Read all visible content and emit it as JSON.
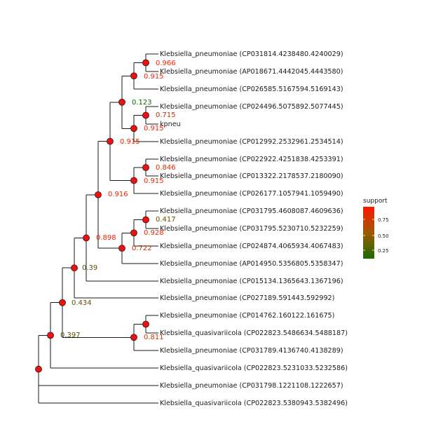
{
  "tree": {
    "tips": [
      "Klebsiella_pneumoniae (CP031814.4238480.4240029)",
      "Klebsiella_pneumoniae (AP018671.4442045.4443580)",
      "Klebsiella_pneumoniae (CP026585.5167594.5169143)",
      "Klebsiella_pneumoniae (CP024496.5075892.5077445)",
      "kpneu",
      "Klebsiella_pneumoniae (CP012992.2532961.2534514)",
      "Klebsiella_pneumoniae (CP022922.4251838.4253391)",
      "Klebsiella_pneumoniae (CP013322.2178537.2180090)",
      "Klebsiella_pneumoniae (CP026177.1057941.1059490)",
      "Klebsiella_pneumoniae (CP031795.4608087.4609636)",
      "Klebsiella_pneumoniae (CP031795.5230710.5232259)",
      "Klebsiella_pneumoniae (CP024874.4065934.4067483)",
      "Klebsiella_pneumoniae (AP014950.5356805.5358347)",
      "Klebsiella_pneumoniae (CP015134.1365643.1367196)",
      "Klebsiella_pneumoniae (CP027189.591443.592992)",
      "Klebsiella_pneumoniae (CP014762.160122.161675)",
      "Klebsiella_quasivariicola (CP022823.5486634.5488187)",
      "Klebsiella_pneumoniae (CP031789.4136740.4138289)",
      "Klebsiella_quasivariicola (CP022823.5231033.5232586)",
      "Klebsiella_pneumoniae (CP031798.1221108.1222657)",
      "Klebsiella_quasivariicola (CP022823.5380943.5382496)"
    ],
    "support_labels": [
      {
        "text": "0.966",
        "support": 0.966
      },
      {
        "text": "0.915",
        "support": 0.915
      },
      {
        "text": "0.123",
        "support": 0.123
      },
      {
        "text": "0.715",
        "support": 0.715
      },
      {
        "text": "0.915",
        "support": 0.915
      },
      {
        "text": "0.915",
        "support": 0.915
      },
      {
        "text": "0.846",
        "support": 0.846
      },
      {
        "text": "0.915",
        "support": 0.915
      },
      {
        "text": "0.916",
        "support": 0.916
      },
      {
        "text": "0.417",
        "support": 0.417
      },
      {
        "text": "0.928",
        "support": 0.928
      },
      {
        "text": "0.722",
        "support": 0.722
      },
      {
        "text": "0.898",
        "support": 0.898
      },
      {
        "text": "0.39",
        "support": 0.39
      },
      {
        "text": "0.434",
        "support": 0.434
      },
      {
        "text": "0.811",
        "support": 0.811
      },
      {
        "text": "0.397",
        "support": 0.397
      }
    ]
  },
  "legend": {
    "title": "support",
    "ticks": [
      "0.75",
      "0.50",
      "0.25"
    ],
    "tick_values": [
      0.75,
      0.5,
      0.25
    ],
    "range": [
      0.123,
      0.966
    ],
    "color_high": "#ff2200",
    "color_low": "#116600"
  }
}
